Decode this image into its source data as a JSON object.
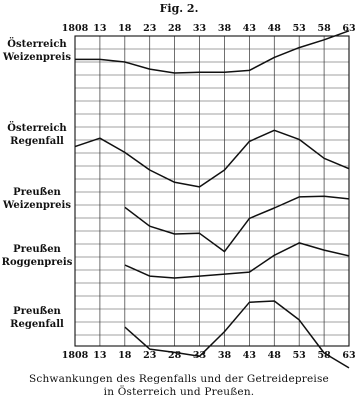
{
  "figure_label": "Fig. 2.",
  "caption": [
    "Schwankungen des Regenfalls und der Getreidepreise",
    "in Österreich und Preußen."
  ],
  "chart_data": {
    "type": "line",
    "x": [
      "1808",
      "13",
      "18",
      "23",
      "28",
      "33",
      "38",
      "43",
      "48",
      "53",
      "58",
      "63"
    ],
    "grid": true,
    "y_axis": "none (relative curves, no values printed)",
    "series": [
      {
        "name": "Österreich Weizenpreis",
        "label_lines": [
          "Österreich",
          "Weizenpreis"
        ],
        "values": [
          0.1,
          0.1,
          -0.3,
          -1.4,
          -2.0,
          -1.9,
          -1.9,
          -1.6,
          0.4,
          1.9,
          3.1,
          4.5
        ]
      },
      {
        "name": "Österreich Regenfall",
        "label_lines": [
          "Österreich",
          "Regenfall"
        ],
        "values": [
          -0.4,
          0.9,
          -1.3,
          -4.0,
          -5.9,
          -6.6,
          -4.0,
          0.4,
          2.1,
          0.7,
          -2.2,
          -3.8
        ]
      },
      {
        "name": "Preußen Weizenpreis",
        "label_lines": [
          "Preußen",
          "Weizenpreis"
        ],
        "values": [
          null,
          null,
          0.1,
          -2.8,
          -4.0,
          -3.9,
          -6.7,
          -1.6,
          0.0,
          1.7,
          1.8,
          1.4
        ]
      },
      {
        "name": "Preußen Roggenpreis",
        "label_lines": [
          "Preußen",
          "Roggenpreis"
        ],
        "values": [
          null,
          null,
          0.0,
          -1.7,
          -2.0,
          -1.7,
          -1.4,
          -1.1,
          1.5,
          3.4,
          2.3,
          1.4
        ]
      },
      {
        "name": "Preußen Regenfall",
        "label_lines": [
          "Preußen",
          "Regenfall"
        ],
        "values": [
          null,
          null,
          0.0,
          -3.4,
          -3.9,
          -4.5,
          -0.7,
          3.8,
          4.0,
          1.1,
          -4.0,
          -6.3
        ]
      }
    ]
  }
}
